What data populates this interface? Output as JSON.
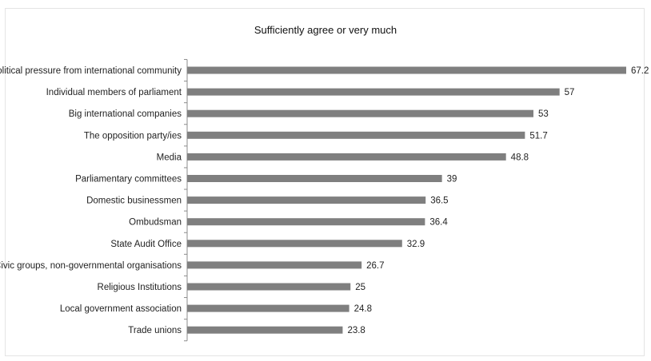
{
  "chart_data": {
    "type": "bar",
    "orientation": "horizontal",
    "title": "Sufficiently agree or very much",
    "xlabel": "",
    "ylabel": "",
    "xlim": [
      0,
      67.2
    ],
    "grid": false,
    "legend": "none",
    "bar_color": "#7f7f7f",
    "categories": [
      "Political pressure from international community",
      "Individual members of parliament",
      "Big international companies",
      "The opposition party/ies",
      "Media",
      "Parliamentary committees",
      "Domestic businessmen",
      "Ombudsman",
      "State Audit Office",
      "Civic groups, non-governmental organisations",
      "Religious Institutions",
      "Local government association",
      "Trade unions"
    ],
    "values": [
      67.2,
      57,
      53,
      51.7,
      48.8,
      39,
      36.5,
      36.4,
      32.9,
      26.7,
      25,
      24.8,
      23.8
    ]
  }
}
